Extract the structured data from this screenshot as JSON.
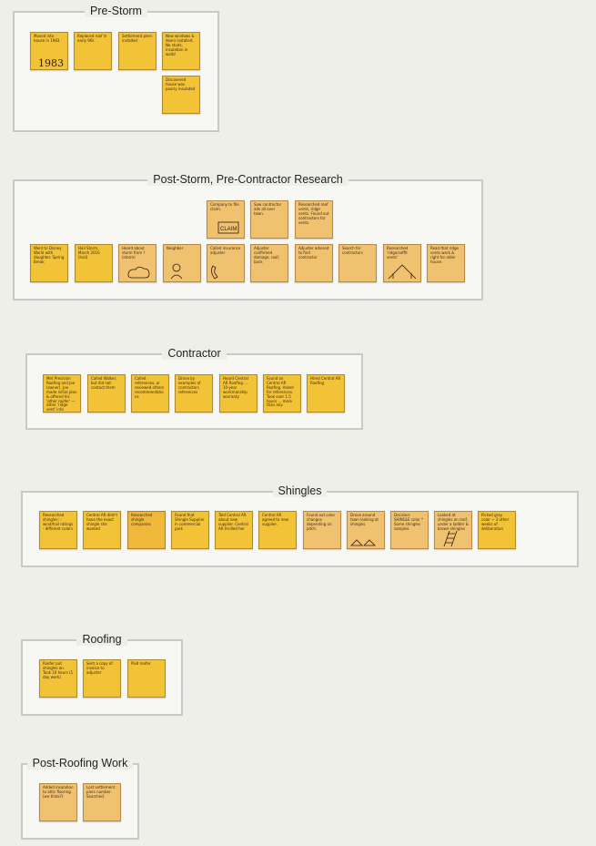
{
  "groups": [
    {
      "title": "Pre-Storm",
      "notes": [
        {
          "text": "Moved into house in 1983",
          "color": "yellow",
          "sketch": "year"
        },
        {
          "text": "Replaced roof in early 90s",
          "color": "yellow",
          "sketch": "none"
        },
        {
          "text": "Settlement piers installed",
          "color": "yellow",
          "sketch": "none"
        },
        {
          "text": "New windows & doors installed. No studs, insulation in walls!",
          "color": "yellow",
          "sketch": "none"
        },
        {
          "text": "Discovered house was poorly insulated",
          "color": "yellow",
          "sketch": "none"
        }
      ]
    },
    {
      "title": "Post-Storm, Pre-Contractor Research",
      "notes": [
        {
          "text": "Company to file claim.",
          "color": "orange",
          "sketch": "claim"
        },
        {
          "text": "Saw contractor ads all over town.",
          "color": "orange",
          "sketch": "none"
        },
        {
          "text": "Researched roof vents, ridge vents. Found out contractors for vents.",
          "color": "orange",
          "sketch": "none"
        },
        {
          "text": "Went to Disney World with daughter. Spring Break",
          "color": "yellow",
          "sketch": "none"
        },
        {
          "text": "Hail Storm, March 2016 (hail)",
          "color": "yellow",
          "sketch": "none"
        },
        {
          "text": "Heard about storm from ? (storm)",
          "color": "orange",
          "sketch": "cloud"
        },
        {
          "text": "Neighbor",
          "color": "orange",
          "sketch": "person"
        },
        {
          "text": "Called insurance adjuster",
          "color": "orange",
          "sketch": "phone"
        },
        {
          "text": "Adjuster confirmed damage, roof, back",
          "color": "orange",
          "sketch": "none"
        },
        {
          "text": "Adjuster advised to find contractor",
          "color": "orange",
          "sketch": "none"
        },
        {
          "text": "Search for contractors",
          "color": "orange",
          "sketch": "none"
        },
        {
          "text": "Researched 'ridge/soffit vents'",
          "color": "orange",
          "sketch": "house"
        },
        {
          "text": "Read that ridge vents work & right for older house.",
          "color": "orange",
          "sketch": "none"
        }
      ]
    },
    {
      "title": "Contractor",
      "notes": [
        {
          "text": "Met Precision Roofing and Joe (owner). Joe made initial plan & offered his 'other roofer' — other 'ridge vent' info",
          "color": "yellow",
          "sketch": "none"
        },
        {
          "text": "Called Walker, but did not contact them",
          "color": "yellow",
          "sketch": "none"
        },
        {
          "text": "Called references, or reviewed others recommendations",
          "color": "yellow",
          "sketch": "none"
        },
        {
          "text": "Drove by examples of contractors references",
          "color": "yellow",
          "sketch": "none"
        },
        {
          "text": "Heard Central AR Roofing ... 10-year workmanship warranty",
          "color": "yellow",
          "sketch": "none"
        },
        {
          "text": "Found on Central AR Roofing. Asked for references. Took over 1.5 hours ... more than any",
          "color": "yellow",
          "sketch": "none"
        },
        {
          "text": "Hired Central AR Roofing",
          "color": "yellow",
          "sketch": "none"
        }
      ]
    },
    {
      "title": "Shingles",
      "notes": [
        {
          "text": "Researched shingles: - wind/hail ratings - different colors",
          "color": "yellow",
          "sketch": "none"
        },
        {
          "text": "Central AR didn't have the exact shingle she wanted",
          "color": "yellow",
          "sketch": "none"
        },
        {
          "text": "Researched shingle companies",
          "color": "amber",
          "sketch": "none"
        },
        {
          "text": "Found that Shingle Supplier in commercial park",
          "color": "yellow",
          "sketch": "none"
        },
        {
          "text": "Told Central AR about new supplier. Central AR thrilled her",
          "color": "yellow",
          "sketch": "none"
        },
        {
          "text": "Central AR agreed to new supplier.",
          "color": "yellow",
          "sketch": "none"
        },
        {
          "text": "Found out color changes depending on pitch.",
          "color": "orange",
          "sketch": "none"
        },
        {
          "text": "Drove around town looking at shingles",
          "color": "orange",
          "sketch": "houses"
        },
        {
          "text": "Decision: SHINGLE color * Some shingles samples",
          "color": "orange",
          "sketch": "none"
        },
        {
          "text": "Looked at shingles on roof, under a ladder & brown shingles",
          "color": "orange",
          "sketch": "ladder"
        },
        {
          "text": "Picked gray color ~ 3 other weeks of deliberation",
          "color": "yellow",
          "sketch": "none"
        }
      ]
    },
    {
      "title": "Roofing",
      "notes": [
        {
          "text": "Roofer put shingles on. Took 10 hours (1 day work)",
          "color": "yellow",
          "sketch": "none"
        },
        {
          "text": "Sent a copy of invoice to adjuster",
          "color": "yellow",
          "sketch": "none"
        },
        {
          "text": "Paid roofer",
          "color": "yellow",
          "sketch": "none"
        }
      ]
    },
    {
      "title": "Post-Roofing Work",
      "notes": [
        {
          "text": "Added insulation to attic flooring. (we think?)",
          "color": "orange",
          "sketch": "none"
        },
        {
          "text": "Lost settlement piers number. Searched.",
          "color": "orange",
          "sketch": "none"
        }
      ]
    }
  ],
  "colors": {
    "yellow": "#f2c237",
    "orange": "#f0c26f",
    "amber": "#efb839",
    "background": "#efefea",
    "group_border": "#c9c9c6"
  }
}
